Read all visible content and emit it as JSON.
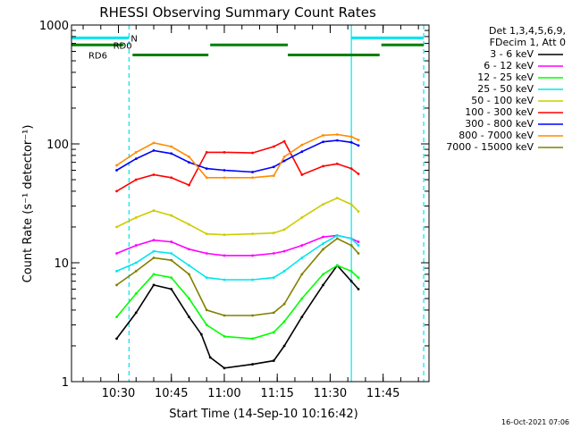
{
  "chart_data": {
    "type": "line",
    "title": "RHESSI Observing Summary Count Rates",
    "xlabel": "Start Time (14-Sep-10 10:16:42)",
    "ylabel": "Count Rate (s⁻¹ detector⁻¹)",
    "yscale": "log",
    "ylim": [
      1,
      1000
    ],
    "xlim": [
      "10:16:42",
      "11:58:00"
    ],
    "x_ticks": [
      "10:30",
      "10:45",
      "11:00",
      "11:15",
      "11:30",
      "11:45"
    ],
    "y_ticks": [
      "1",
      "10",
      "100",
      "1000"
    ],
    "legend_position": "right",
    "legend_header": [
      "Det 1,3,4,5,6,9,",
      "FDecim 1, Att 0"
    ],
    "footer_date": "16-Oct-2021 07:06",
    "annotations": [
      {
        "label": "N",
        "color": "#00e5ee",
        "y_level": 780,
        "intervals": [
          [
            "10:16:42",
            "10:33:00"
          ],
          [
            "11:36:00",
            "11:56:30"
          ]
        ]
      },
      {
        "label": "RD0",
        "color": "#008000",
        "y_level": 680,
        "intervals": [
          [
            "10:16:42",
            "10:31:30"
          ],
          [
            "10:56:00",
            "11:18:00"
          ],
          [
            "11:44:30",
            "11:56:30"
          ]
        ]
      },
      {
        "label": "RD6",
        "color": "#008000",
        "y_level": 560,
        "intervals": [
          [
            "10:34:00",
            "10:55:30"
          ],
          [
            "11:18:00",
            "11:44:00"
          ]
        ]
      }
    ],
    "vlines": [
      {
        "x": "10:33:00",
        "color": "#00e5ee",
        "dashed": true
      },
      {
        "x": "11:36:00",
        "color": "#00e5ee",
        "dashed": false
      },
      {
        "x": "11:56:30",
        "color": "#00e5ee",
        "dashed": true
      }
    ],
    "series": [
      {
        "name": "3 - 6 keV",
        "color": "#000000",
        "x": [
          "10:29:30",
          "10:35:00",
          "10:40:00",
          "10:45:00",
          "10:50:00",
          "10:53:30",
          "10:56:00",
          "11:00:00",
          "11:08:00",
          "11:14:00",
          "11:17:00",
          "11:22:00",
          "11:28:00",
          "11:32:00",
          "11:36:00",
          "11:38:00"
        ],
        "values": [
          2.3,
          3.8,
          6.5,
          6.0,
          3.5,
          2.5,
          1.6,
          1.3,
          1.4,
          1.5,
          2.0,
          3.5,
          6.5,
          9.5,
          7.0,
          6.0
        ]
      },
      {
        "name": "6 - 12 keV",
        "color": "#ff00ff",
        "x": [
          "10:29:30",
          "10:35:00",
          "10:40:00",
          "10:45:00",
          "10:50:00",
          "10:55:00",
          "11:00:00",
          "11:08:00",
          "11:14:00",
          "11:17:00",
          "11:22:00",
          "11:28:00",
          "11:32:00",
          "11:36:00",
          "11:38:00"
        ],
        "values": [
          12.0,
          14.0,
          15.5,
          15.0,
          13.0,
          12.0,
          11.5,
          11.5,
          12.0,
          12.5,
          14.0,
          16.5,
          17.0,
          16.0,
          15.0
        ]
      },
      {
        "name": "12 - 25 keV",
        "color": "#00ff00",
        "x": [
          "10:29:30",
          "10:35:00",
          "10:40:00",
          "10:45:00",
          "10:50:00",
          "10:55:00",
          "11:00:00",
          "11:08:00",
          "11:14:00",
          "11:17:00",
          "11:22:00",
          "11:28:00",
          "11:32:00",
          "11:36:00",
          "11:38:00"
        ],
        "values": [
          3.5,
          5.5,
          8.0,
          7.5,
          5.0,
          3.0,
          2.4,
          2.3,
          2.6,
          3.2,
          5.0,
          8.0,
          9.5,
          8.5,
          7.5
        ]
      },
      {
        "name": "25 - 50 keV",
        "color": "#00e5ee",
        "x": [
          "10:29:30",
          "10:35:00",
          "10:40:00",
          "10:45:00",
          "10:50:00",
          "10:55:00",
          "11:00:00",
          "11:08:00",
          "11:14:00",
          "11:17:00",
          "11:22:00",
          "11:28:00",
          "11:32:00",
          "11:36:00",
          "11:38:00"
        ],
        "values": [
          8.5,
          10.0,
          12.5,
          12.0,
          9.5,
          7.5,
          7.2,
          7.2,
          7.5,
          8.5,
          11.0,
          14.5,
          17.0,
          16.0,
          14.0
        ]
      },
      {
        "name": "50 - 100 keV",
        "color": "#cccc00",
        "x": [
          "10:29:30",
          "10:35:00",
          "10:40:00",
          "10:45:00",
          "10:50:00",
          "10:55:00",
          "11:00:00",
          "11:08:00",
          "11:14:00",
          "11:17:00",
          "11:22:00",
          "11:28:00",
          "11:32:00",
          "11:36:00",
          "11:38:00"
        ],
        "values": [
          20.0,
          24.0,
          27.5,
          25.0,
          21.0,
          17.5,
          17.2,
          17.5,
          17.8,
          19.0,
          24.0,
          31.0,
          35.0,
          31.0,
          27.0
        ]
      },
      {
        "name": "100 - 300 keV",
        "color": "#ff0000",
        "x": [
          "10:29:30",
          "10:35:00",
          "10:40:00",
          "10:45:00",
          "10:50:00",
          "10:55:00",
          "11:00:00",
          "11:08:00",
          "11:14:00",
          "11:17:00",
          "11:22:00",
          "11:28:00",
          "11:32:00",
          "11:36:00",
          "11:38:00"
        ],
        "values": [
          40.0,
          50.0,
          55.0,
          52.0,
          45.0,
          85.0,
          85.0,
          84.0,
          95.0,
          105.0,
          55.0,
          65.0,
          68.0,
          62.0,
          56.0
        ]
      },
      {
        "name": "300 - 800 keV",
        "color": "#0000ff",
        "x": [
          "10:29:30",
          "10:35:00",
          "10:40:00",
          "10:45:00",
          "10:50:00",
          "10:55:00",
          "11:00:00",
          "11:08:00",
          "11:14:00",
          "11:17:00",
          "11:22:00",
          "11:28:00",
          "11:32:00",
          "11:36:00",
          "11:38:00"
        ],
        "values": [
          60.0,
          75.0,
          88.0,
          83.0,
          70.0,
          62.0,
          60.0,
          58.0,
          64.0,
          72.0,
          86.0,
          104.0,
          107.0,
          103.0,
          97.0
        ]
      },
      {
        "name": "800 - 7000 keV",
        "color": "#ff8c00",
        "x": [
          "10:29:30",
          "10:35:00",
          "10:40:00",
          "10:45:00",
          "10:50:00",
          "10:55:00",
          "11:00:00",
          "11:08:00",
          "11:14:00",
          "11:17:00",
          "11:22:00",
          "11:28:00",
          "11:32:00",
          "11:36:00",
          "11:38:00"
        ],
        "values": [
          66.0,
          85.0,
          102.0,
          95.0,
          78.0,
          52.0,
          52.0,
          52.0,
          54.0,
          78.0,
          98.0,
          118.0,
          120.0,
          115.0,
          108.0
        ]
      },
      {
        "name": "7000 - 15000 keV",
        "color": "#808000",
        "x": [
          "10:29:30",
          "10:35:00",
          "10:40:00",
          "10:45:00",
          "10:50:00",
          "10:55:00",
          "11:00:00",
          "11:08:00",
          "11:14:00",
          "11:17:00",
          "11:22:00",
          "11:28:00",
          "11:32:00",
          "11:36:00",
          "11:38:00"
        ],
        "values": [
          6.5,
          8.5,
          11.0,
          10.5,
          8.0,
          4.0,
          3.6,
          3.6,
          3.8,
          4.5,
          8.0,
          13.0,
          16.0,
          14.0,
          12.0
        ]
      }
    ]
  }
}
